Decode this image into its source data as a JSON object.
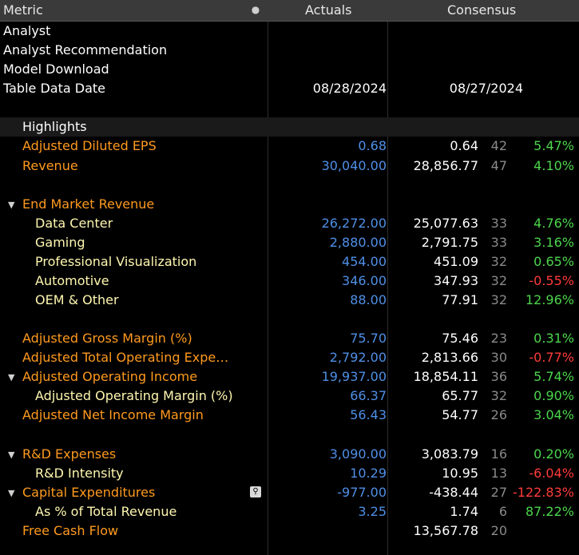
{
  "header": {
    "metric": "Metric",
    "actuals": "Actuals",
    "consensus": "Consensus"
  },
  "top_rows": [
    {
      "label": "Analyst",
      "actual": "",
      "consensus": ""
    },
    {
      "label": "Analyst Recommendation",
      "actual": "",
      "consensus": ""
    },
    {
      "label": "Model Download",
      "actual": "",
      "consensus": ""
    },
    {
      "label": "Table Data Date",
      "actual": "08/28/2024",
      "consensus": "08/27/2024"
    }
  ],
  "highlights_title": "Highlights",
  "rows": [
    {
      "label": "Adjusted Diluted EPS",
      "actual": "0.68",
      "consensus": "0.64",
      "count": "42",
      "pct": "5.47%"
    },
    {
      "label": "Revenue",
      "actual": "30,040.00",
      "consensus": "28,856.77",
      "count": "47",
      "pct": "4.10%"
    },
    {
      "label": "End Market Revenue"
    },
    {
      "label": "Data Center",
      "actual": "26,272.00",
      "consensus": "25,077.63",
      "count": "33",
      "pct": "4.76%"
    },
    {
      "label": "Gaming",
      "actual": "2,880.00",
      "consensus": "2,791.75",
      "count": "33",
      "pct": "3.16%"
    },
    {
      "label": "Professional Visualization",
      "actual": "454.00",
      "consensus": "451.09",
      "count": "32",
      "pct": "0.65%"
    },
    {
      "label": "Automotive",
      "actual": "346.00",
      "consensus": "347.93",
      "count": "32",
      "pct": "-0.55%"
    },
    {
      "label": "OEM & Other",
      "actual": "88.00",
      "consensus": "77.91",
      "count": "32",
      "pct": "12.96%"
    },
    {
      "label": "Adjusted Gross Margin (%)",
      "actual": "75.70",
      "consensus": "75.46",
      "count": "23",
      "pct": "0.31%"
    },
    {
      "label": "Adjusted Total Operating Expe…",
      "actual": "2,792.00",
      "consensus": "2,813.66",
      "count": "30",
      "pct": "-0.77%"
    },
    {
      "label": "Adjusted Operating Income",
      "actual": "19,937.00",
      "consensus": "18,854.11",
      "count": "36",
      "pct": "5.74%"
    },
    {
      "label": "Adjusted Operating Margin (%)",
      "actual": "66.37",
      "consensus": "65.77",
      "count": "32",
      "pct": "0.90%"
    },
    {
      "label": "Adjusted Net Income Margin",
      "actual": "56.43",
      "consensus": "54.77",
      "count": "26",
      "pct": "3.04%"
    },
    {
      "label": "R&D Expenses",
      "actual": "3,090.00",
      "consensus": "3,083.79",
      "count": "16",
      "pct": "0.20%"
    },
    {
      "label": "R&D Intensity",
      "actual": "10.29",
      "consensus": "10.95",
      "count": "13",
      "pct": "-6.04%"
    },
    {
      "label": "Capital Expenditures",
      "actual": "-977.00",
      "consensus": "-438.44",
      "count": "27",
      "pct": "-122.83%"
    },
    {
      "label": "As % of Total Revenue",
      "actual": "3.25",
      "consensus": "1.74",
      "count": "6",
      "pct": "87.22%"
    },
    {
      "label": "Free Cash Flow",
      "actual": "",
      "consensus": "13,567.78",
      "count": "20",
      "pct": ""
    }
  ],
  "colors": {
    "parent_label": "#ff9a1f",
    "child_label": "#fff7b0",
    "actual_value": "#4f8fe6",
    "positive": "#4cd64c",
    "negative": "#ff3b3b"
  },
  "icons": {
    "header": "lightbulb-icon",
    "capex": "magnifier-icon",
    "expand": "triangle-down-icon"
  }
}
